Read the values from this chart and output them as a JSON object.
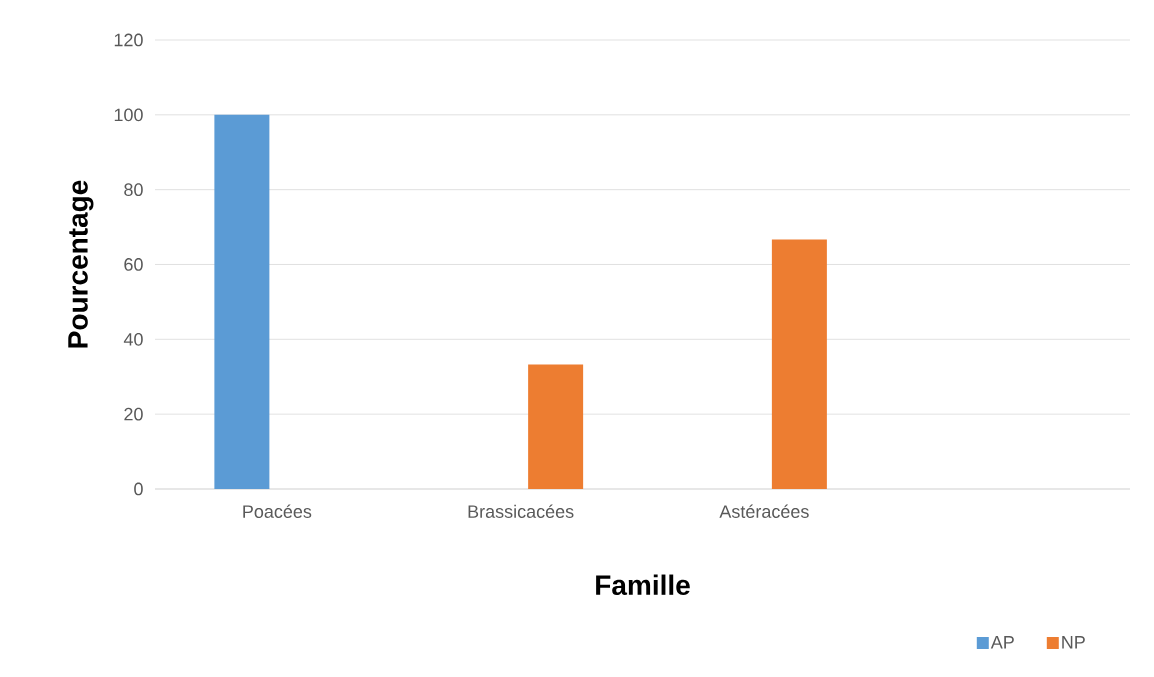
{
  "chart_data": {
    "type": "bar",
    "xlabel": "Famille",
    "ylabel": "Pourcentage",
    "categories": [
      "Poacées",
      "Brassicacées",
      "Astéracées",
      null
    ],
    "series": [
      {
        "name": "AP",
        "color": "#5b9bd5",
        "values": [
          100,
          null,
          null,
          null
        ]
      },
      {
        "name": "NP",
        "color": "#ed7d31",
        "values": [
          null,
          33.3,
          66.7,
          null
        ]
      }
    ],
    "ylim": [
      0,
      120
    ],
    "yticks": [
      0,
      20,
      40,
      60,
      80,
      100,
      120
    ],
    "grid": "y",
    "legend": "bottom right"
  }
}
